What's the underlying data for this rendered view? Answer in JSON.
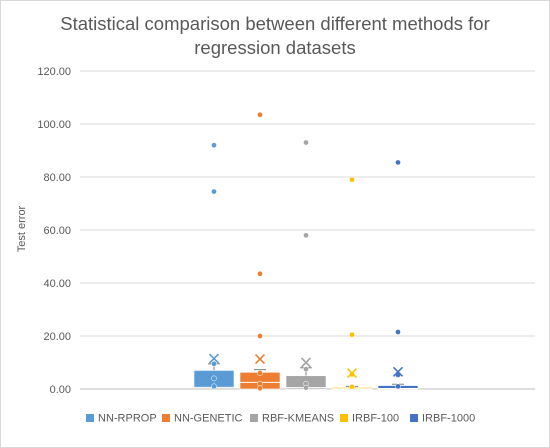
{
  "chart_data": {
    "type": "box",
    "title": [
      "Statistical comparison between different methods for",
      "regression datasets"
    ],
    "xlabel": "",
    "ylabel": "Test error",
    "ylim": [
      0,
      120
    ],
    "yticks": [
      "0.00",
      "20.00",
      "40.00",
      "60.00",
      "80.00",
      "100.00",
      "120.00"
    ],
    "grid": true,
    "legend_position": "bottom",
    "series": [
      {
        "name": "NN-RPROP",
        "color": "#5b9bd5",
        "q1": 0.3,
        "median": 0.6,
        "q3": 7.0,
        "whisker_low": 0.0,
        "whisker_high": 9.5,
        "mean": 11.5,
        "points": [
          9.5,
          4.0,
          1.0,
          74.5,
          92.0
        ]
      },
      {
        "name": "NN-GENETIC",
        "color": "#ed7d31",
        "q1": 0.0,
        "median": 2.5,
        "q3": 6.3,
        "whisker_low": 0.0,
        "whisker_high": 7.3,
        "mean": 11.3,
        "points": [
          6.0,
          2.0,
          0.3,
          20.0,
          43.5,
          103.5
        ]
      },
      {
        "name": "RBF-KMEANS",
        "color": "#a5a5a5",
        "q1": 0.0,
        "median": 0.5,
        "q3": 5.0,
        "whisker_low": 0.0,
        "whisker_high": 8.0,
        "mean": 10.0,
        "points": [
          7.5,
          2.0,
          0.5,
          58.0,
          93.0
        ]
      },
      {
        "name": "IRBF-100",
        "color": "#ffc000",
        "q1": 0.0,
        "median": 0.1,
        "q3": 0.6,
        "whisker_low": 0.0,
        "whisker_high": 1.0,
        "mean": 6.0,
        "points": [
          5.5,
          0.8,
          20.5,
          79.0
        ]
      },
      {
        "name": "IRBF-1000",
        "color": "#4472c4",
        "q1": 0.0,
        "median": 0.2,
        "q3": 1.3,
        "whisker_low": 0.0,
        "whisker_high": 1.8,
        "mean": 6.5,
        "points": [
          5.3,
          1.0,
          21.5,
          85.5
        ]
      }
    ]
  }
}
